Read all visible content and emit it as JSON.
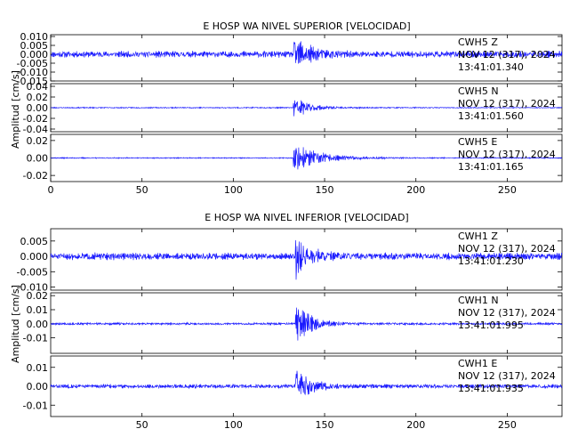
{
  "chart_data": [
    {
      "type": "line",
      "title": "E HOSP WA NIVEL SUPERIOR [VELOCIDAD]",
      "ylabel": "Amplitud [cm/s]",
      "xlim": [
        0,
        280
      ],
      "xticks": [
        {
          "value": 0,
          "label": "0"
        },
        {
          "value": 50,
          "label": "50"
        },
        {
          "value": 100,
          "label": "100"
        },
        {
          "value": 150,
          "label": "150"
        },
        {
          "value": 200,
          "label": "200"
        },
        {
          "value": 250,
          "label": "250"
        }
      ],
      "traces": [
        {
          "channel": "CWH5 Z",
          "date": "NOV 12 (317), 2024",
          "time": "13:41:01.340",
          "ylim": [
            -0.015,
            0.011
          ],
          "yticks": [
            {
              "value": 0.01,
              "label": "0.010"
            },
            {
              "value": 0.005,
              "label": "0.005"
            },
            {
              "value": 0,
              "label": "0.000"
            },
            {
              "value": -0.005,
              "label": "-0.005"
            },
            {
              "value": -0.01,
              "label": "-0.010"
            },
            {
              "value": -0.015,
              "label": "-0.015"
            }
          ],
          "noise": 0.0022,
          "event_start": 133,
          "event_peak": 0.011,
          "decay": 9,
          "seed": 11
        },
        {
          "channel": "CWH5 N",
          "date": "NOV 12 (317), 2024",
          "time": "13:41:01.560",
          "ylim": [
            -0.045,
            0.045
          ],
          "yticks": [
            {
              "value": 0.04,
              "label": "0.04"
            },
            {
              "value": 0.02,
              "label": "0.02"
            },
            {
              "value": 0,
              "label": "0.00"
            },
            {
              "value": -0.02,
              "label": "-0.02"
            },
            {
              "value": -0.04,
              "label": "-0.04"
            }
          ],
          "noise": 0.0012,
          "event_start": 133,
          "event_peak": 0.03,
          "decay": 8,
          "seed": 23
        },
        {
          "channel": "CWH5 E",
          "date": "NOV 12 (317), 2024",
          "time": "13:41:01.165",
          "ylim": [
            -0.027,
            0.027
          ],
          "yticks": [
            {
              "value": 0.02,
              "label": "0.02"
            },
            {
              "value": 0,
              "label": "0.00"
            },
            {
              "value": -0.02,
              "label": "-0.02"
            }
          ],
          "noise": 0.0007,
          "event_start": 133,
          "event_peak": 0.021,
          "decay": 14,
          "seed": 37
        }
      ]
    },
    {
      "type": "line",
      "title": "E HOSP WA NIVEL INFERIOR [VELOCIDAD]",
      "ylabel": "Amplitud [cm/s]",
      "xlim": [
        0,
        280
      ],
      "xticks": [
        {
          "value": 50,
          "label": "50"
        },
        {
          "value": 100,
          "label": "100"
        },
        {
          "value": 150,
          "label": "150"
        },
        {
          "value": 200,
          "label": "200"
        },
        {
          "value": 250,
          "label": "250"
        }
      ],
      "traces": [
        {
          "channel": "CWH1 Z",
          "date": "NOV 12 (317), 2024",
          "time": "13:41:01.230",
          "ylim": [
            -0.011,
            0.009
          ],
          "yticks": [
            {
              "value": 0.005,
              "label": "0.005"
            },
            {
              "value": 0,
              "label": "0.000"
            },
            {
              "value": -0.005,
              "label": "-0.005"
            },
            {
              "value": -0.01,
              "label": "-0.010"
            }
          ],
          "noise": 0.0014,
          "event_start": 134,
          "event_peak": 0.0085,
          "decay": 7,
          "seed": 51
        },
        {
          "channel": "CWH1 N",
          "date": "NOV 12 (317), 2024",
          "time": "13:41:01.995",
          "ylim": [
            -0.021,
            0.022
          ],
          "yticks": [
            {
              "value": 0.02,
              "label": "0.02"
            },
            {
              "value": 0.01,
              "label": "0.01"
            },
            {
              "value": 0,
              "label": "0.00"
            },
            {
              "value": -0.01,
              "label": "-0.01"
            }
          ],
          "noise": 0.0009,
          "event_start": 134,
          "event_peak": 0.018,
          "decay": 8,
          "seed": 67
        },
        {
          "channel": "CWH1 E",
          "date": "NOV 12 (317), 2024",
          "time": "13:41:01.935",
          "ylim": [
            -0.016,
            0.016
          ],
          "yticks": [
            {
              "value": 0.01,
              "label": "0.01"
            },
            {
              "value": 0,
              "label": "0.00"
            },
            {
              "value": -0.01,
              "label": "-0.01"
            }
          ],
          "noise": 0.0013,
          "event_start": 134,
          "event_peak": 0.014,
          "decay": 7,
          "seed": 83
        }
      ]
    }
  ],
  "colors": {
    "trace": "#1a1aff",
    "axis": "#000000",
    "background": "#ffffff"
  }
}
